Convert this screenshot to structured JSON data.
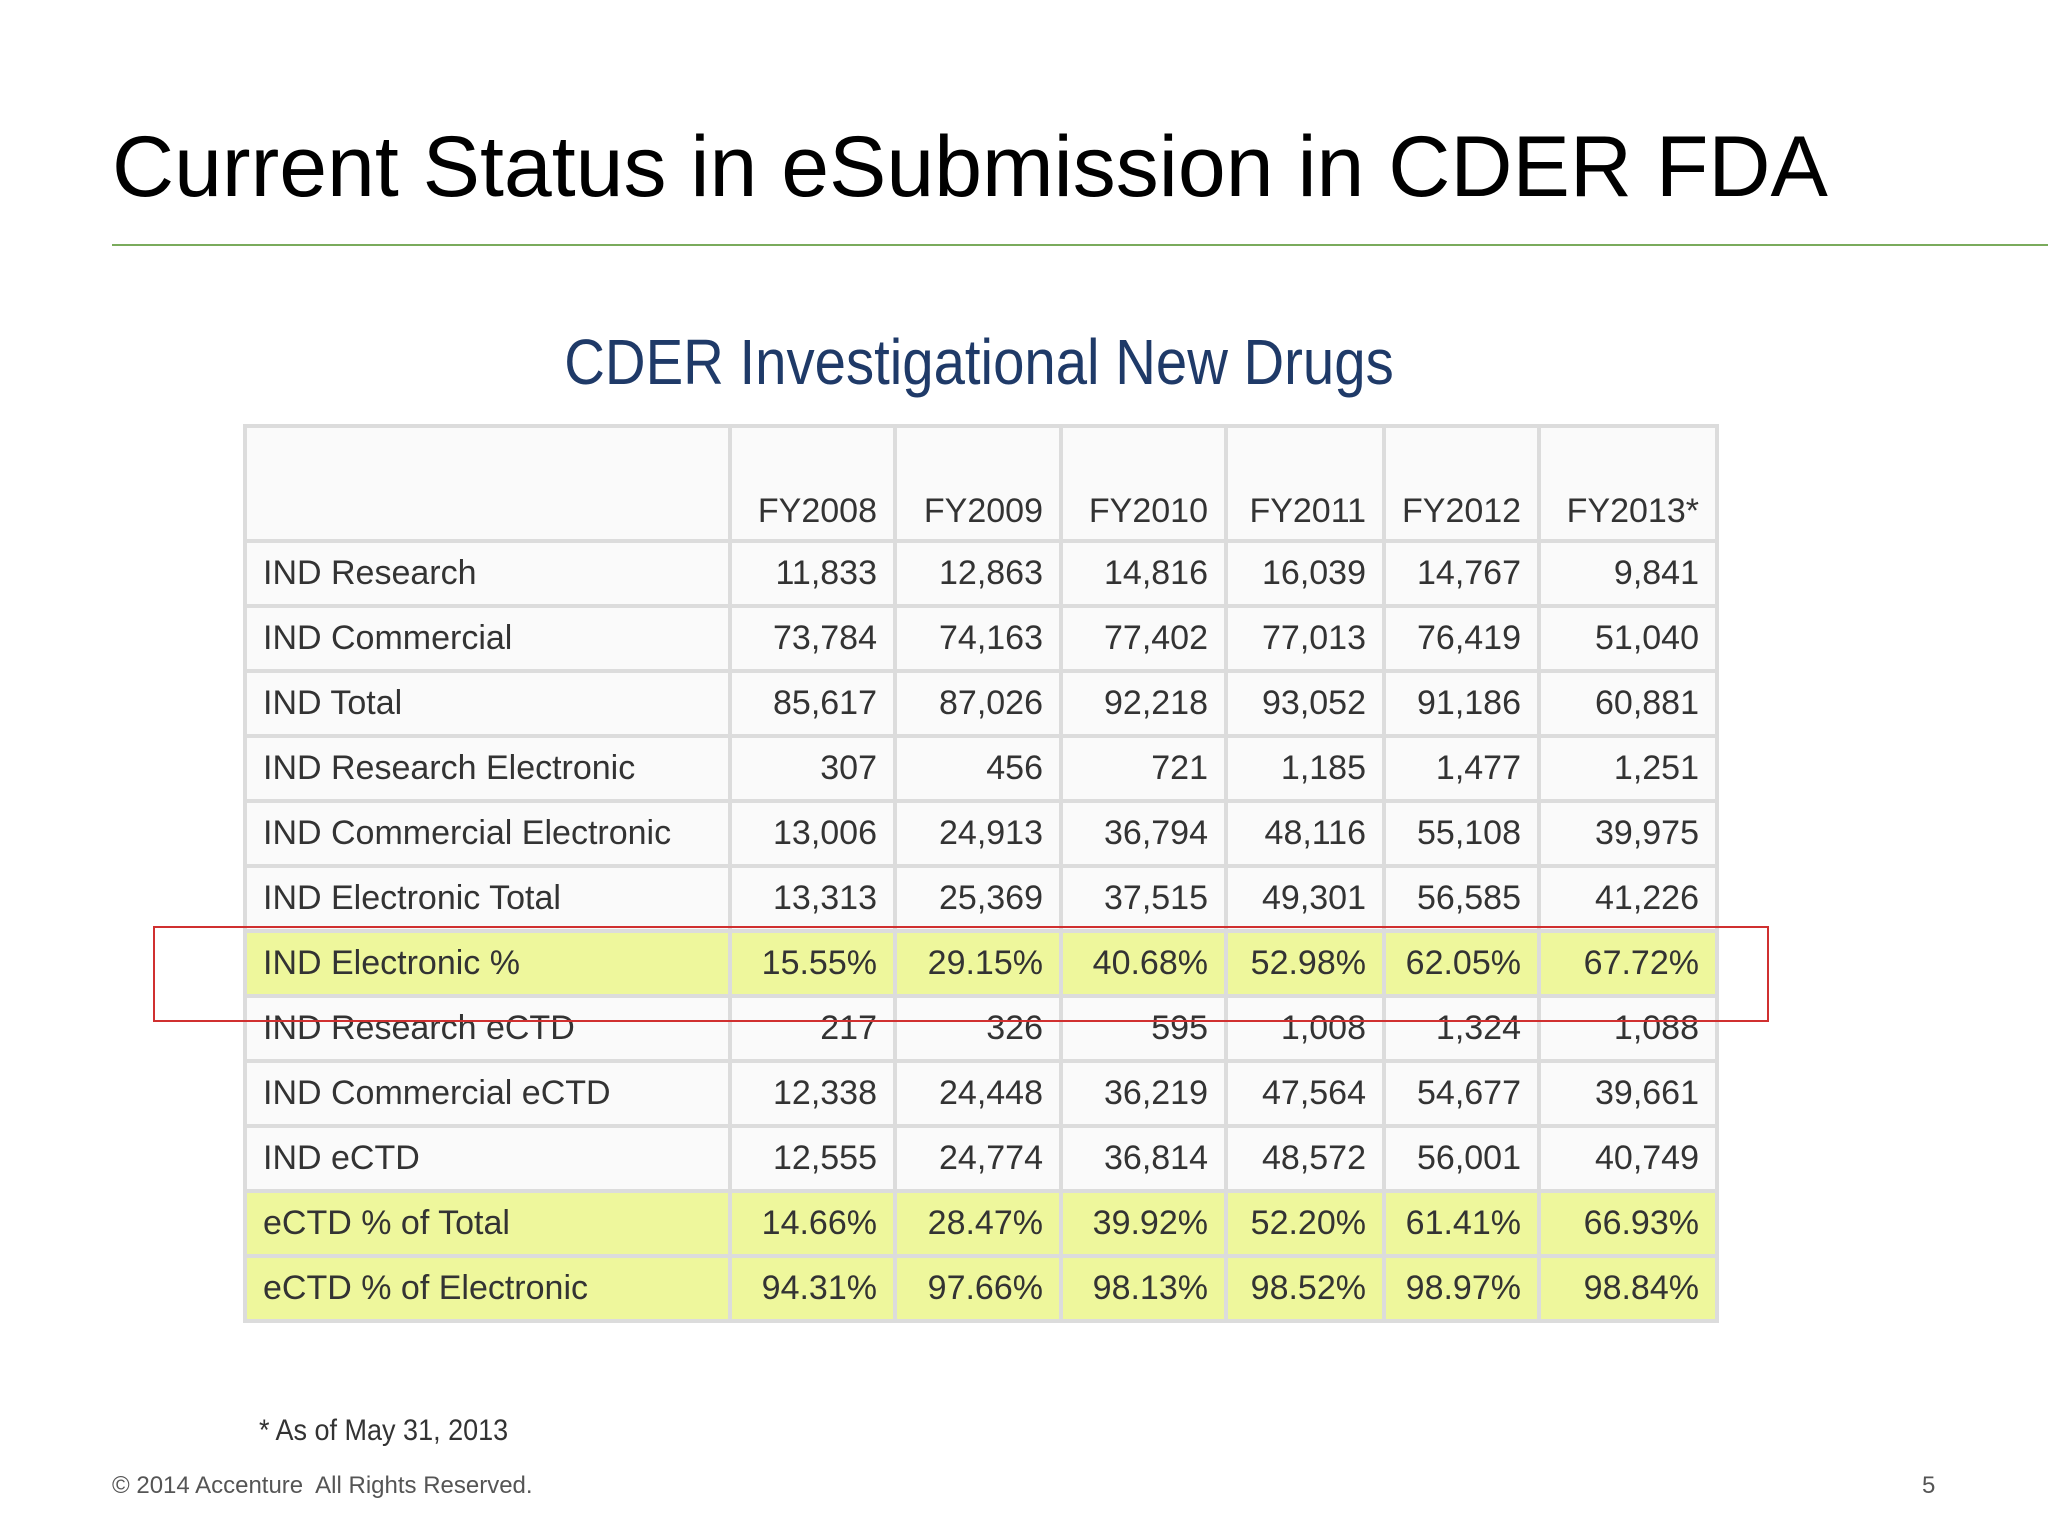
{
  "header": {
    "title": "Current Status in eSubmission in CDER FDA"
  },
  "table": {
    "title": "CDER Investigational New Drugs",
    "columns": [
      "FY2008",
      "FY2009",
      "FY2010",
      "FY2011",
      "FY2012",
      "FY2013*"
    ],
    "rows": [
      {
        "label": "IND Research",
        "values": [
          "11,833",
          "12,863",
          "14,816",
          "16,039",
          "14,767",
          "9,841"
        ]
      },
      {
        "label": "IND Commercial",
        "values": [
          "73,784",
          "74,163",
          "77,402",
          "77,013",
          "76,419",
          "51,040"
        ]
      },
      {
        "label": "IND Total",
        "values": [
          "85,617",
          "87,026",
          "92,218",
          "93,052",
          "91,186",
          "60,881"
        ]
      },
      {
        "label": "IND Research Electronic",
        "values": [
          "307",
          "456",
          "721",
          "1,185",
          "1,477",
          "1,251"
        ]
      },
      {
        "label": "IND Commercial Electronic",
        "values": [
          "13,006",
          "24,913",
          "36,794",
          "48,116",
          "55,108",
          "39,975"
        ]
      },
      {
        "label": "IND Electronic Total",
        "values": [
          "13,313",
          "25,369",
          "37,515",
          "49,301",
          "56,585",
          "41,226"
        ]
      },
      {
        "label": "IND Electronic %",
        "values": [
          "15.55%",
          "29.15%",
          "40.68%",
          "52.98%",
          "62.05%",
          "67.72%"
        ]
      },
      {
        "label": "IND Research eCTD",
        "values": [
          "217",
          "326",
          "595",
          "1,008",
          "1,324",
          "1,088"
        ]
      },
      {
        "label": "IND Commercial eCTD",
        "values": [
          "12,338",
          "24,448",
          "36,219",
          "47,564",
          "54,677",
          "39,661"
        ]
      },
      {
        "label": "IND eCTD",
        "values": [
          "12,555",
          "24,774",
          "36,814",
          "48,572",
          "56,001",
          "40,749"
        ]
      },
      {
        "label": "eCTD % of Total",
        "values": [
          "14.66%",
          "28.47%",
          "39.92%",
          "52.20%",
          "61.41%",
          "66.93%"
        ]
      },
      {
        "label": "eCTD % of Electronic",
        "values": [
          "94.31%",
          "97.66%",
          "98.13%",
          "98.52%",
          "98.97%",
          "98.84%"
        ]
      }
    ],
    "footnote": "* As of May 31, 2013"
  },
  "footer": {
    "copyright": "© 2014 Accenture  All Rights Reserved.",
    "page": 5
  }
}
